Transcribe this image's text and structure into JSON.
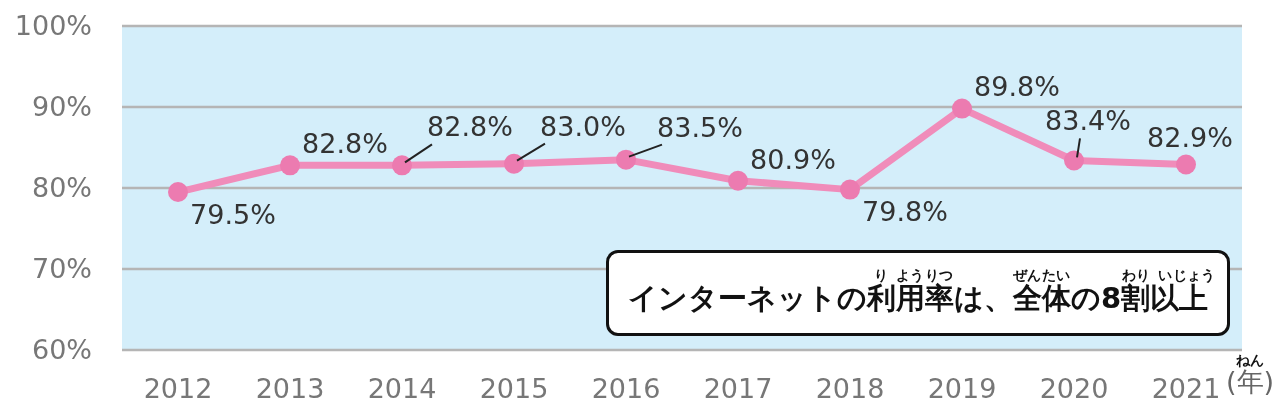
{
  "chart_data": {
    "type": "line",
    "categories": [
      "2012",
      "2013",
      "2014",
      "2015",
      "2016",
      "2017",
      "2018",
      "2019",
      "2020",
      "2021"
    ],
    "values": [
      79.5,
      82.8,
      82.8,
      83.0,
      83.5,
      80.9,
      79.8,
      89.8,
      83.4,
      82.9
    ],
    "value_labels": [
      "79.5%",
      "82.8%",
      "82.8%",
      "83.0%",
      "83.5%",
      "80.9%",
      "79.8%",
      "89.8%",
      "83.4%",
      "82.9%"
    ],
    "color": "#f08cba",
    "marker": "circle",
    "grid": "y",
    "ylim": [
      60,
      100
    ],
    "yticks": [
      {
        "value": 60,
        "label": "60%"
      },
      {
        "value": 70,
        "label": "70%"
      },
      {
        "value": 80,
        "label": "80%"
      },
      {
        "value": 90,
        "label": "90%"
      },
      {
        "value": 100,
        "label": "100%"
      }
    ],
    "xlabel": "(年)",
    "annotations": [
      "インターネットの利用率は、全体の8割以上",
      "り",
      "よう",
      "りつ",
      "ぜん",
      "たい",
      "わり",
      "い",
      "じょう",
      "ねん"
    ]
  }
}
